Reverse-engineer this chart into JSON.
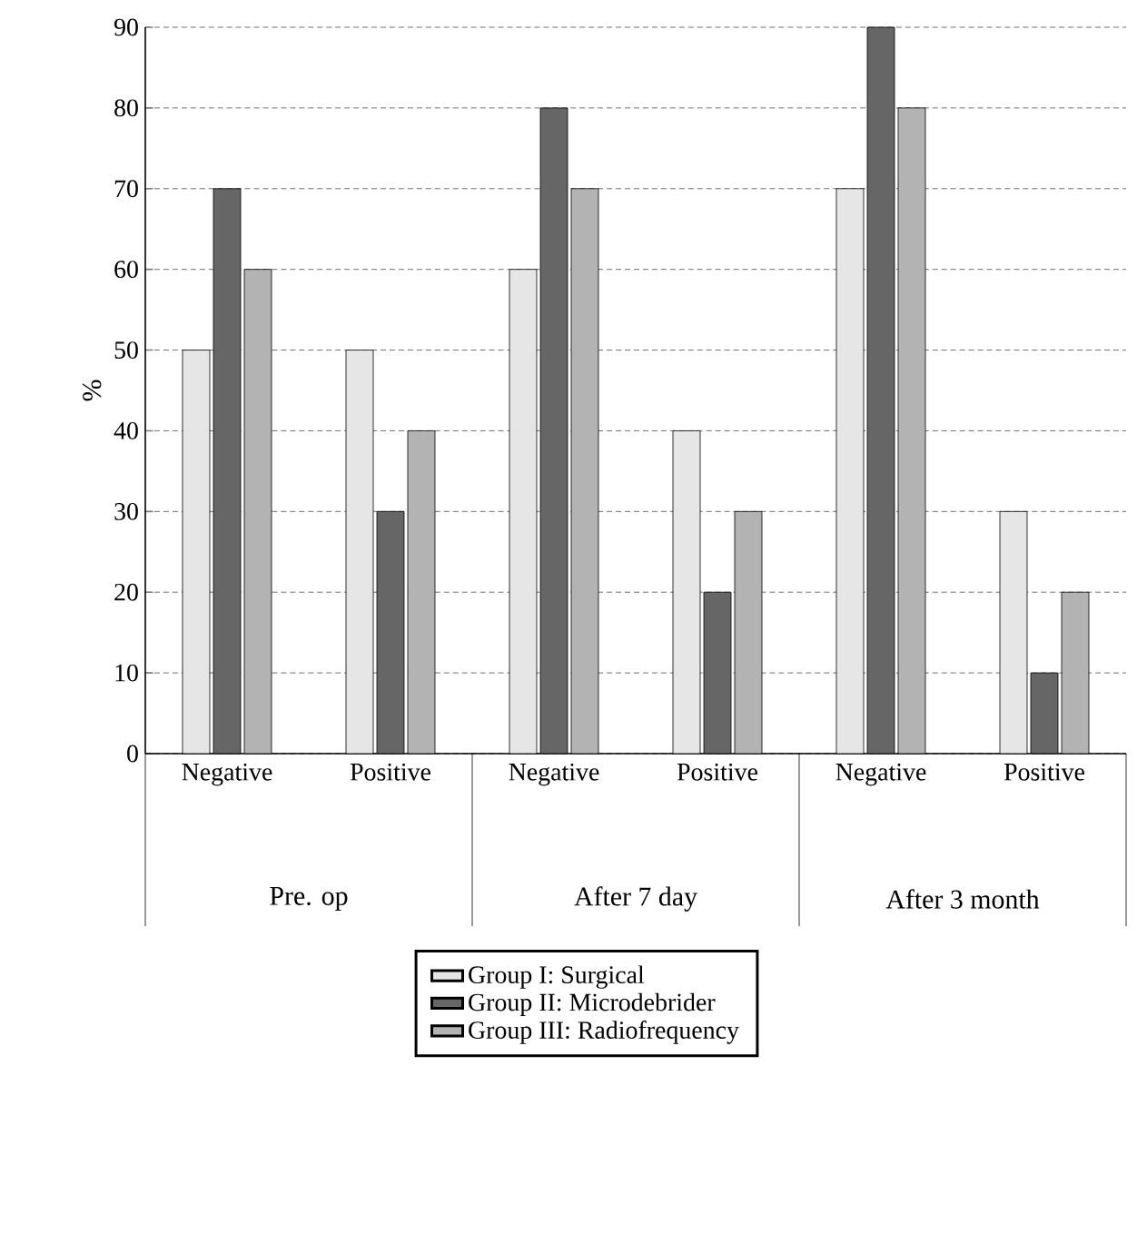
{
  "chart_data": {
    "type": "bar",
    "ylabel": "%",
    "categories": [
      "Negative",
      "Positive",
      "Negative",
      "Positive",
      "Negative",
      "Positive"
    ],
    "annotations": [
      "Pre. op",
      "After 7 day",
      "After 3 month"
    ],
    "series": [
      {
        "name": "Group I: Surgical",
        "color": "#e6e6e6",
        "values": [
          50,
          50,
          60,
          40,
          70,
          30
        ]
      },
      {
        "name": "Group II: Microdebrider",
        "color": "#666666",
        "values": [
          70,
          30,
          80,
          20,
          90,
          10
        ]
      },
      {
        "name": "Group III: Radiofrequency",
        "color": "#b3b3b3",
        "values": [
          60,
          40,
          70,
          30,
          80,
          20
        ]
      }
    ],
    "ylim": [
      0,
      90
    ],
    "yticks": [
      0,
      10,
      20,
      30,
      40,
      50,
      60,
      70,
      80,
      90
    ],
    "grid": "y",
    "legend": "bottom"
  }
}
